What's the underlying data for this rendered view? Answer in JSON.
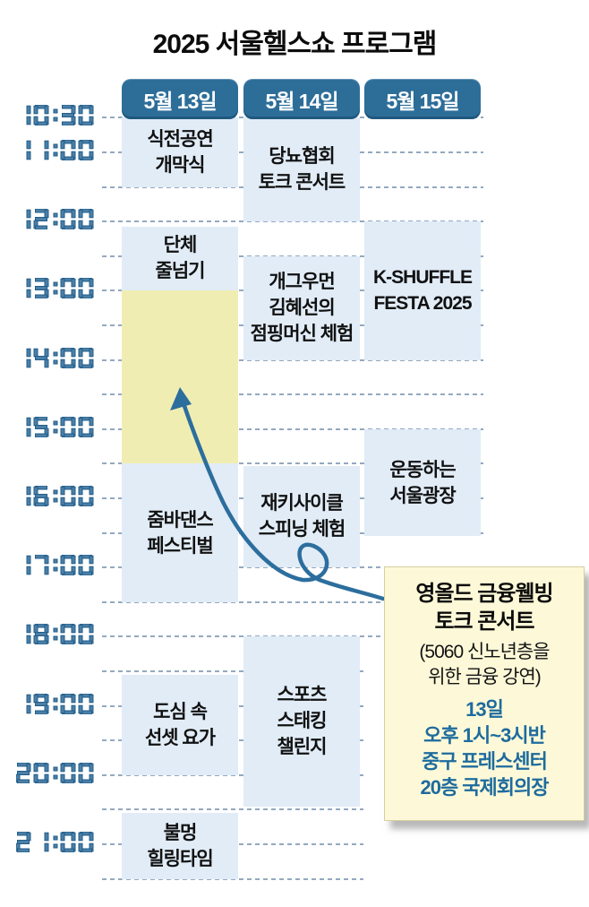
{
  "title": "2025 서울헬스쇼 프로그램",
  "colors": {
    "accent": "#2c6e9d",
    "accent_dark": "#235d8a",
    "digit_fill": "#4a7fa7",
    "tab_bg": "#2d6e99",
    "event_bg": "#e1ecf7",
    "highlight_bg": "#f0edb2",
    "callout_bg": "#fdf9d8",
    "grid_line": "#94a9bf",
    "event_text": "#111111",
    "callout_detail_text": "#1e6b9e"
  },
  "chart_data": {
    "type": "table",
    "subtype": "timetable-gantt",
    "title": "2025 서울헬스쇼 프로그램",
    "time_axis": {
      "start_hour": 10.5,
      "end_hour": 21.5,
      "tick_interval_hours": 0.5,
      "labels": [
        {
          "t": 10.5,
          "label": "10:30"
        },
        {
          "t": 11.0,
          "label": "11:00"
        },
        {
          "t": 12.0,
          "label": "12:00"
        },
        {
          "t": 13.0,
          "label": "13:00"
        },
        {
          "t": 14.0,
          "label": "14:00"
        },
        {
          "t": 15.0,
          "label": "15:00"
        },
        {
          "t": 16.0,
          "label": "16:00"
        },
        {
          "t": 17.0,
          "label": "17:00"
        },
        {
          "t": 18.0,
          "label": "18:00"
        },
        {
          "t": 19.0,
          "label": "19:00"
        },
        {
          "t": 20.0,
          "label": "20:00"
        },
        {
          "t": 21.0,
          "label": "21:00"
        }
      ]
    },
    "days": [
      "5월 13일",
      "5월 14일",
      "5월 15일"
    ],
    "events": [
      {
        "day": 0,
        "start_h": 10.5,
        "end_h": 11.5,
        "lines": [
          "식전공연",
          "개막식"
        ],
        "highlight": false
      },
      {
        "day": 0,
        "start_h": 12.07,
        "end_h": 13.0,
        "lines": [
          "단체",
          "줄넘기"
        ],
        "highlight": false
      },
      {
        "day": 0,
        "start_h": 13.0,
        "end_h": 15.5,
        "lines": [],
        "highlight": true
      },
      {
        "day": 0,
        "start_h": 15.5,
        "end_h": 17.5,
        "lines": [
          "줌바댄스",
          "페스티벌"
        ],
        "highlight": false
      },
      {
        "day": 0,
        "start_h": 18.55,
        "end_h": 20.0,
        "lines": [
          "도심 속",
          "선셋 요가"
        ],
        "highlight": false
      },
      {
        "day": 0,
        "start_h": 20.55,
        "end_h": 21.5,
        "lines": [
          "불멍",
          "힐링타임"
        ],
        "highlight": false
      },
      {
        "day": 1,
        "start_h": 10.5,
        "end_h": 12.0,
        "lines": [
          "당뇨협회",
          "토크 콘서트"
        ],
        "highlight": false
      },
      {
        "day": 1,
        "start_h": 12.5,
        "end_h": 14.0,
        "lines": [
          "개그우먼",
          "김혜선의",
          "점핑머신 체험"
        ],
        "highlight": false
      },
      {
        "day": 1,
        "start_h": 15.53,
        "end_h": 17.0,
        "lines": [
          "재키사이클",
          "스피닝 체험"
        ],
        "highlight": false
      },
      {
        "day": 1,
        "start_h": 18.0,
        "end_h": 20.45,
        "lines": [
          "스포츠",
          "스태킹",
          "챌린지"
        ],
        "highlight": false
      },
      {
        "day": 2,
        "start_h": 12.0,
        "end_h": 14.0,
        "lines": [
          "K-SHUFFLE",
          "FESTA 2025"
        ],
        "highlight": false
      },
      {
        "day": 2,
        "start_h": 15.0,
        "end_h": 16.55,
        "lines": [
          "운동하는",
          "서울광장"
        ],
        "highlight": false
      }
    ],
    "annotation": {
      "points_to": "highlighted slot 5월 13일 13:00~15:30",
      "callout_text": "영올드 금융웰빙 토크 콘서트 (5060 신노년층을 위한 금융 강연) 13일 오후 1시~3시반 중구 프레스센터 20층 국제회의장"
    }
  },
  "callout": {
    "title_lines": [
      "영올드 금융웰빙",
      "토크 콘서트"
    ],
    "note_lines": [
      "(5060 신노년층을",
      "위한 금융 강연)"
    ],
    "detail_lines": [
      "13일",
      "오후 1시~3시반",
      "중구 프레스센터",
      "20층 국제회의장"
    ]
  }
}
